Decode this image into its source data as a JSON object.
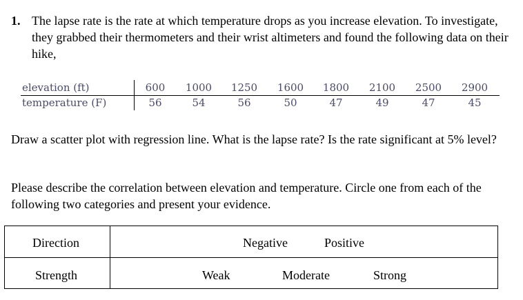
{
  "question": {
    "number": "1.",
    "text": "The lapse rate is the rate at which temperature drops as you increase elevation. To investigate, they grabbed their thermometers and their wrist altimeters and found the following data on their hike,"
  },
  "data_table": {
    "row1_label": "elevation (ft)",
    "row2_label": "temperature (F)",
    "elevation": [
      "600",
      "1000",
      "1250",
      "1600",
      "1800",
      "2100",
      "2500",
      "2900"
    ],
    "temperature": [
      "56",
      "54",
      "56",
      "50",
      "47",
      "49",
      "47",
      "45"
    ]
  },
  "prompt1": "Draw a scatter plot with regression line. What is the lapse rate? Is the rate significant at 5% level?",
  "prompt2": "Please describe the correlation between elevation and temperature. Circle one from each of the following two categories and present your evidence.",
  "choice_table": {
    "direction_label": "Direction",
    "direction_options": [
      "Negative",
      "Positive"
    ],
    "strength_label": "Strength",
    "strength_options": [
      "Weak",
      "Moderate",
      "Strong"
    ]
  }
}
